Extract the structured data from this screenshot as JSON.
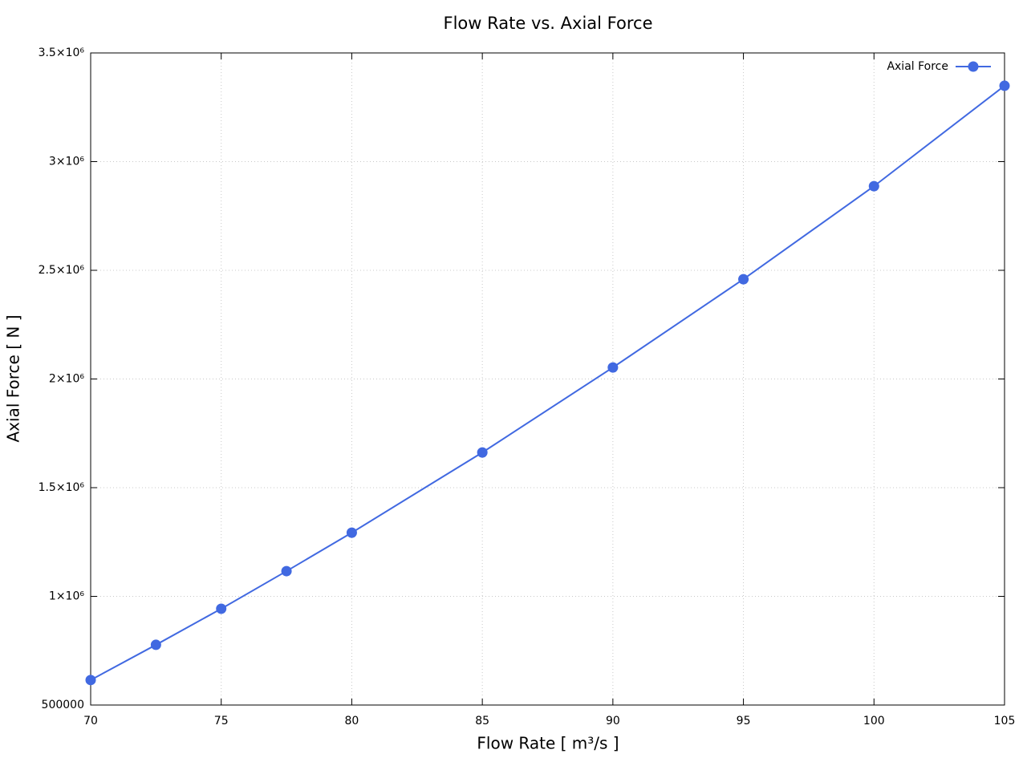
{
  "chart_data": {
    "type": "line",
    "title": "Flow Rate vs. Axial Force",
    "x_label": "Flow Rate [ m³/s ]",
    "y_label": "Axial Force [ N ]",
    "x": [
      70,
      72.5,
      75,
      77.5,
      80,
      85,
      90,
      95,
      100,
      105
    ],
    "series": [
      {
        "name": "Axial Force",
        "color": "#4169e1",
        "values": [
          615000,
          777000,
          943000,
          1116000,
          1293000,
          1662000,
          2053000,
          2459000,
          2887000,
          3349000
        ]
      }
    ],
    "xlim": [
      70,
      105
    ],
    "xticks": [
      70,
      75,
      80,
      85,
      90,
      95,
      100,
      105
    ],
    "ylim": [
      500000,
      3500000
    ],
    "yticks": [
      500000,
      {
        "value": 1000000,
        "label": "1×10⁶"
      },
      {
        "value": 1500000,
        "label": "1.5×10⁶"
      },
      {
        "value": 2000000,
        "label": "2×10⁶"
      },
      {
        "value": 2500000,
        "label": "2.5×10⁶"
      },
      {
        "value": 3000000,
        "label": "3×10⁶"
      },
      {
        "value": 3500000,
        "label": "3.5×10⁶"
      }
    ],
    "grid": true,
    "legend": "top-right"
  }
}
